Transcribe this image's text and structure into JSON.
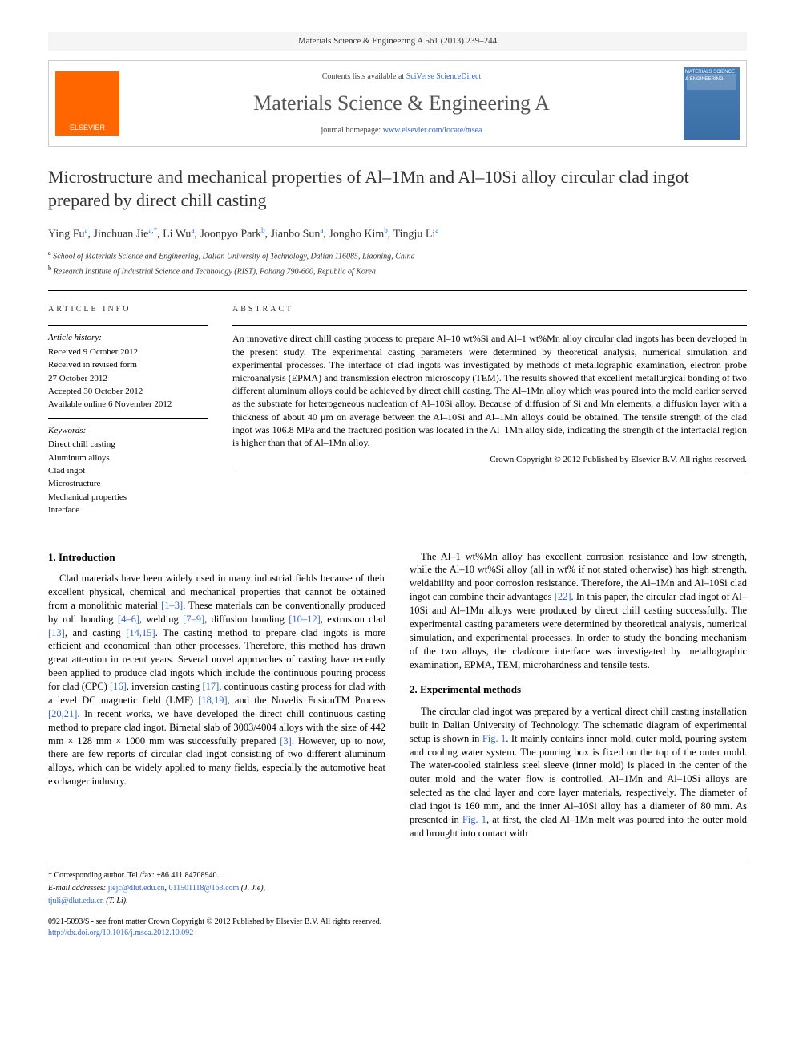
{
  "header": {
    "citation": "Materials Science & Engineering A 561 (2013) 239–244"
  },
  "masthead": {
    "publisher_logo": "ELSEVIER",
    "contents_prefix": "Contents lists available at ",
    "contents_link": "SciVerse ScienceDirect",
    "journal_name": "Materials Science & Engineering A",
    "homepage_prefix": "journal homepage: ",
    "homepage_link": "www.elsevier.com/locate/msea",
    "cover_text": "MATERIALS SCIENCE & ENGINEERING"
  },
  "title": "Microstructure and mechanical properties of Al–1Mn and Al–10Si alloy circular clad ingot prepared by direct chill casting",
  "authors_html": "Ying Fu<sup>a</sup>, Jinchuan Jie<sup>a,*</sup>, Li Wu<sup>a</sup>, Joonpyo Park<sup>b</sup>, Jianbo Sun<sup>a</sup>, Jongho Kim<sup>b</sup>, Tingju Li<sup>a</sup>",
  "affiliations": [
    {
      "sup": "a",
      "text": "School of Materials Science and Engineering, Dalian University of Technology, Dalian 116085, Liaoning, China"
    },
    {
      "sup": "b",
      "text": "Research Institute of Industrial Science and Technology (RIST), Pohang 790-600, Republic of Korea"
    }
  ],
  "article_info": {
    "label": "ARTICLE INFO",
    "history_label": "Article history:",
    "history": [
      "Received 9 October 2012",
      "Received in revised form",
      "27 October 2012",
      "Accepted 30 October 2012",
      "Available online 6 November 2012"
    ],
    "keywords_label": "Keywords:",
    "keywords": [
      "Direct chill casting",
      "Aluminum alloys",
      "Clad ingot",
      "Microstructure",
      "Mechanical properties",
      "Interface"
    ]
  },
  "abstract": {
    "label": "ABSTRACT",
    "text": "An innovative direct chill casting process to prepare Al–10 wt%Si and Al–1 wt%Mn alloy circular clad ingots has been developed in the present study. The experimental casting parameters were determined by theoretical analysis, numerical simulation and experimental processes. The interface of clad ingots was investigated by methods of metallographic examination, electron probe microanalysis (EPMA) and transmission electron microscopy (TEM). The results showed that excellent metallurgical bonding of two different aluminum alloys could be achieved by direct chill casting. The Al–1Mn alloy which was poured into the mold earlier served as the substrate for heterogeneous nucleation of Al–10Si alloy. Because of diffusion of Si and Mn elements, a diffusion layer with a thickness of about 40 μm on average between the Al–10Si and Al–1Mn alloys could be obtained. The tensile strength of the clad ingot was 106.8 MPa and the fractured position was located in the Al–1Mn alloy side, indicating the strength of the interfacial region is higher than that of Al–1Mn alloy.",
    "copyright": "Crown Copyright © 2012 Published by Elsevier B.V. All rights reserved."
  },
  "body": {
    "section1_title": "1. Introduction",
    "section1_p1": "Clad materials have been widely used in many industrial fields because of their excellent physical, chemical and mechanical properties that cannot be obtained from a monolithic material [1–3]. These materials can be conventionally produced by roll bonding [4–6], welding [7–9], diffusion bonding [10–12], extrusion clad [13], and casting [14,15]. The casting method to prepare clad ingots is more efficient and economical than other processes. Therefore, this method has drawn great attention in recent years. Several novel approaches of casting have recently been applied to produce clad ingots which include the continuous pouring process for clad (CPC) [16], inversion casting [17], continuous casting process for clad with a level DC magnetic field (LMF) [18,19], and the Novelis FusionTM Process [20,21]. In recent works, we have developed the direct chill continuous casting method to prepare clad ingot. Bimetal slab of 3003/4004 alloys with the size of 442 mm × 128 mm × 1000 mm was successfully prepared [3]. However, up to now, there are few reports of circular clad ingot consisting of two different aluminum alloys, which can be widely applied to many fields, especially the automotive heat exchanger industry.",
    "section1_p2": "The Al–1 wt%Mn alloy has excellent corrosion resistance and low strength, while the Al–10 wt%Si alloy (all in wt% if not stated otherwise) has high strength, weldability and poor corrosion resistance. Therefore, the Al–1Mn and Al–10Si clad ingot can combine their advantages [22]. In this paper, the circular clad ingot of Al–10Si and Al–1Mn alloys were produced by direct chill casting successfully. The experimental casting parameters were determined by theoretical analysis, numerical simulation, and experimental processes. In order to study the bonding mechanism of the two alloys, the clad/core interface was investigated by metallographic examination, EPMA, TEM, microhardness and tensile tests.",
    "section2_title": "2. Experimental methods",
    "section2_p1": "The circular clad ingot was prepared by a vertical direct chill casting installation built in Dalian University of Technology. The schematic diagram of experimental setup is shown in Fig. 1. It mainly contains inner mold, outer mold, pouring system and cooling water system. The pouring box is fixed on the top of the outer mold. The water-cooled stainless steel sleeve (inner mold) is placed in the center of the outer mold and the water flow is controlled. Al–1Mn and Al–10Si alloys are selected as the clad layer and core layer materials, respectively. The diameter of clad ingot is 160 mm, and the inner Al–10Si alloy has a diameter of 80 mm. As presented in Fig. 1, at first, the clad Al–1Mn melt was poured into the outer mold and brought into contact with"
  },
  "footer": {
    "corr_label": "* Corresponding author. Tel./fax: +86 411 84708940.",
    "email_label": "E-mail addresses: ",
    "email1": "jiejc@dlut.edu.cn",
    "email1_suffix": ", ",
    "email2": "011501118@163.com",
    "email2_suffix": " (J. Jie),",
    "email3": "tjuli@dlut.edu.cn",
    "email3_suffix": " (T. Li).",
    "issn_line": "0921-5093/$ - see front matter Crown Copyright © 2012 Published by Elsevier B.V. All rights reserved.",
    "doi": "http://dx.doi.org/10.1016/j.msea.2012.10.092"
  },
  "colors": {
    "link": "#3366cc",
    "elsevier_orange": "#ff6600",
    "text": "#000000",
    "bg": "#ffffff"
  }
}
